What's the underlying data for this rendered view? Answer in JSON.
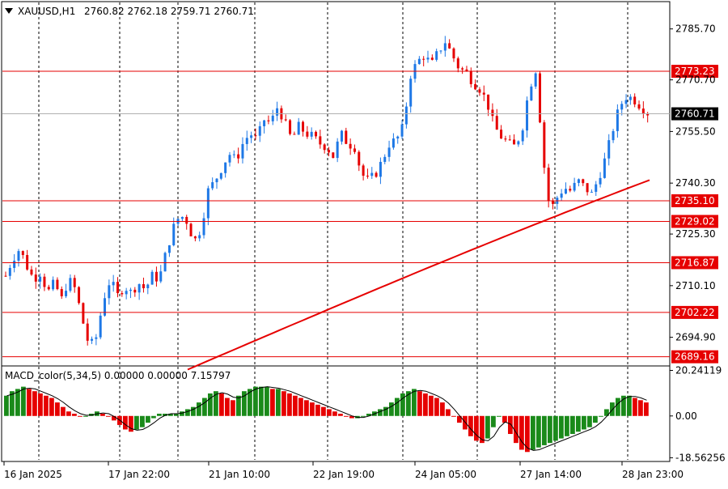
{
  "header": {
    "symbol": "XAUUSD,H1",
    "ohlc": "2760.82 2762.18 2759.71 2760.71"
  },
  "indicator": {
    "label": "MACD_color(5,34,5) 0.00000 0.00000 7.15797"
  },
  "colors": {
    "bull": "#1e78e6",
    "bear": "#e60000",
    "level_line": "#e60000",
    "ma_line": "#e60000",
    "hist_up": "#1a8a1a",
    "hist_down": "#e60000",
    "signal": "#000000"
  },
  "chart_data": [
    {
      "type": "candlestick",
      "name": "XAUUSD,H1",
      "ylim": [
        2686.7,
        2793.5
      ],
      "y_ticks": [
        "2785.70",
        "2770.70",
        "2755.50",
        "2740.30",
        "2725.30",
        "2710.10",
        "2694.90"
      ],
      "x_ticks": [
        "16 Jan 2025",
        "17 Jan 22:00",
        "21 Jan 10:00",
        "22 Jan 19:00",
        "24 Jan 05:00",
        "27 Jan 14:00",
        "28 Jan 23:00"
      ],
      "current_price": "2760.71",
      "levels": [
        "2773.23",
        "2735.10",
        "2729.02",
        "2716.87",
        "2702.22",
        "2689.16"
      ],
      "close_path": [
        2713,
        2718,
        2721,
        2716,
        2712,
        2714,
        2708,
        2711,
        2706,
        2712,
        2709,
        2700,
        2692,
        2695,
        2706,
        2712,
        2707,
        2710,
        2708,
        2711,
        2709,
        2713,
        2712,
        2720,
        2727,
        2731,
        2729,
        2723,
        2727,
        2738,
        2741,
        2745,
        2749,
        2747,
        2752,
        2755,
        2753,
        2759,
        2758,
        2763,
        2758,
        2753,
        2757,
        2755,
        2754,
        2752,
        2751,
        2748,
        2755,
        2752,
        2751,
        2743,
        2741,
        2743,
        2747,
        2752,
        2753,
        2757,
        2772,
        2776,
        2778,
        2775,
        2779,
        2782,
        2778,
        2774,
        2773,
        2770,
        2768,
        2764,
        2757,
        2754,
        2752,
        2751,
        2756,
        2768,
        2774,
        2748,
        2732,
        2736,
        2739,
        2738,
        2741,
        2739,
        2737,
        2742,
        2748,
        2756,
        2763,
        2766,
        2765,
        2763,
        2761
      ],
      "ma_start": 2685.4,
      "ma_end": 2741.2
    },
    {
      "type": "histogram",
      "name": "MACD_color(5,34,5)",
      "ylim": [
        -19.5,
        21.5
      ],
      "y_ticks": [
        "20.24119",
        "0.00",
        "-18.56256"
      ],
      "values": [
        9,
        11,
        12,
        13,
        12,
        11,
        10,
        9,
        8,
        6,
        4,
        2,
        1,
        0,
        0,
        1,
        2,
        1,
        0,
        -2,
        -4,
        -6,
        -7,
        -6,
        -5,
        -3,
        -1,
        1,
        1,
        1,
        1,
        2,
        3,
        4,
        6,
        8,
        10,
        11,
        10,
        8,
        7,
        9,
        11,
        12,
        13,
        13,
        13,
        12,
        12,
        11,
        10,
        9,
        8,
        7,
        6,
        5,
        4,
        3,
        2,
        1,
        0,
        -1,
        -1,
        0,
        1,
        2,
        3,
        4,
        6,
        8,
        10,
        11,
        12,
        11,
        10,
        9,
        8,
        6,
        3,
        0,
        -3,
        -6,
        -9,
        -11,
        -12,
        -10,
        -5,
        0,
        -3,
        -8,
        -12,
        -15,
        -16,
        -15,
        -14,
        -13,
        -12,
        -11,
        -10,
        -9,
        -8,
        -7,
        -6,
        -5,
        -3,
        0,
        3,
        6,
        8,
        9,
        9,
        8,
        7,
        6
      ]
    }
  ]
}
